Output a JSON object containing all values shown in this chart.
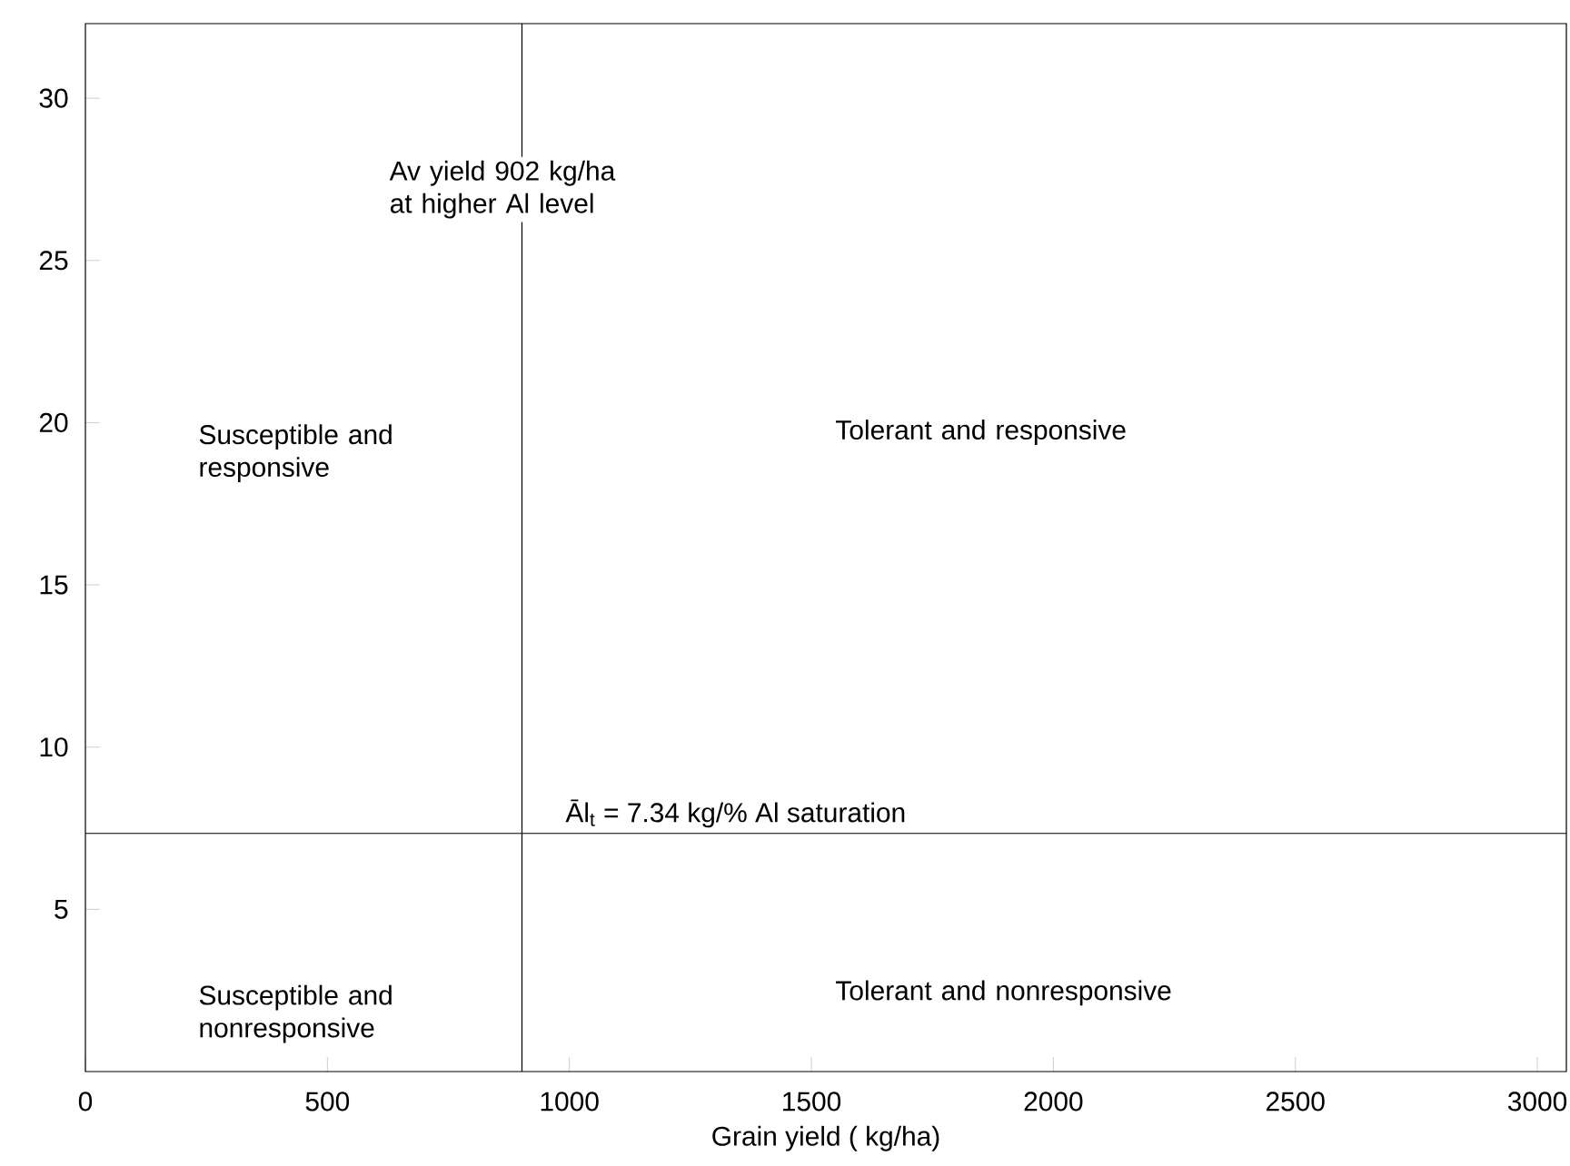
{
  "chart_data": {
    "type": "scatter",
    "xlabel": "Grain yield ( kg/ha)",
    "xlim": [
      0,
      3060
    ],
    "ylim": [
      0,
      32.3
    ],
    "xticks": [
      0,
      500,
      1000,
      1500,
      2000,
      2500,
      3000
    ],
    "yticks": [
      5,
      10,
      15,
      20,
      25,
      30
    ],
    "ref_lines": [
      {
        "axis": "x",
        "value": 902,
        "label": "Av yield 902 kg/ha at higher Al level"
      },
      {
        "axis": "y",
        "value": 7.34,
        "label": "Āl$_{t}$ = 7.34 kg/% Al saturation"
      }
    ],
    "annotations": [
      "Susceptible and responsive",
      "Tolerant and responsive",
      "Susceptible and nonresponsive",
      "Tolerant and nonresponsive"
    ]
  }
}
